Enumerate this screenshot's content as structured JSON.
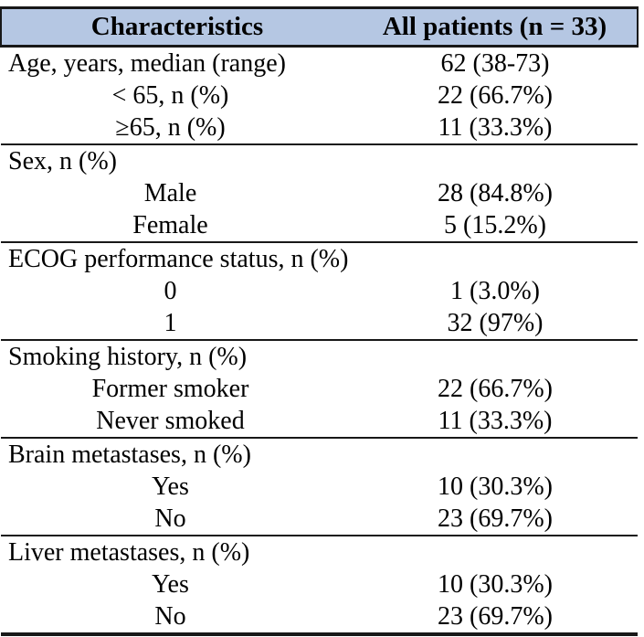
{
  "table": {
    "title": "Patient characteristics table",
    "colors": {
      "header_bg": "#b5c7e3",
      "border": "#181818",
      "text": "#000000"
    },
    "header": {
      "col1": "Characteristics",
      "col2": "All patients (n = 33)"
    },
    "rows": [
      {
        "label": "Age, years, median (range)",
        "value": "62 (38-73)",
        "indent": "section",
        "rule_above": false
      },
      {
        "label": "< 65, n (%)",
        "value": "22 (66.7%)",
        "indent": "sub",
        "rule_above": false
      },
      {
        "label": "≥65, n (%)",
        "value": "11 (33.3%)",
        "indent": "sub",
        "rule_above": false
      },
      {
        "label": "Sex, n (%)",
        "value": "",
        "indent": "section",
        "rule_above": true
      },
      {
        "label": "Male",
        "value": "28 (84.8%)",
        "indent": "sub",
        "rule_above": false
      },
      {
        "label": "Female",
        "value": "5 (15.2%)",
        "indent": "sub",
        "rule_above": false
      },
      {
        "label": "ECOG performance status, n (%)",
        "value": "",
        "indent": "section",
        "rule_above": true
      },
      {
        "label": "0",
        "value": "1 (3.0%)",
        "indent": "sub",
        "rule_above": false
      },
      {
        "label": "1",
        "value": "32 (97%)",
        "indent": "sub",
        "rule_above": false
      },
      {
        "label": "Smoking history, n (%)",
        "value": "",
        "indent": "section",
        "rule_above": true
      },
      {
        "label": "Former smoker",
        "value": "22 (66.7%)",
        "indent": "sub",
        "rule_above": false
      },
      {
        "label": "Never smoked",
        "value": "11 (33.3%)",
        "indent": "sub",
        "rule_above": false
      },
      {
        "label": "Brain metastases, n (%)",
        "value": "",
        "indent": "section",
        "rule_above": true
      },
      {
        "label": "Yes",
        "value": "10 (30.3%)",
        "indent": "sub",
        "rule_above": false
      },
      {
        "label": "No",
        "value": "23 (69.7%)",
        "indent": "sub",
        "rule_above": false
      },
      {
        "label": "Liver metastases, n (%)",
        "value": "",
        "indent": "section",
        "rule_above": true
      },
      {
        "label": "Yes",
        "value": "10 (30.3%)",
        "indent": "sub",
        "rule_above": false
      },
      {
        "label": "No",
        "value": "23 (69.7%)",
        "indent": "sub",
        "rule_above": false
      }
    ]
  }
}
